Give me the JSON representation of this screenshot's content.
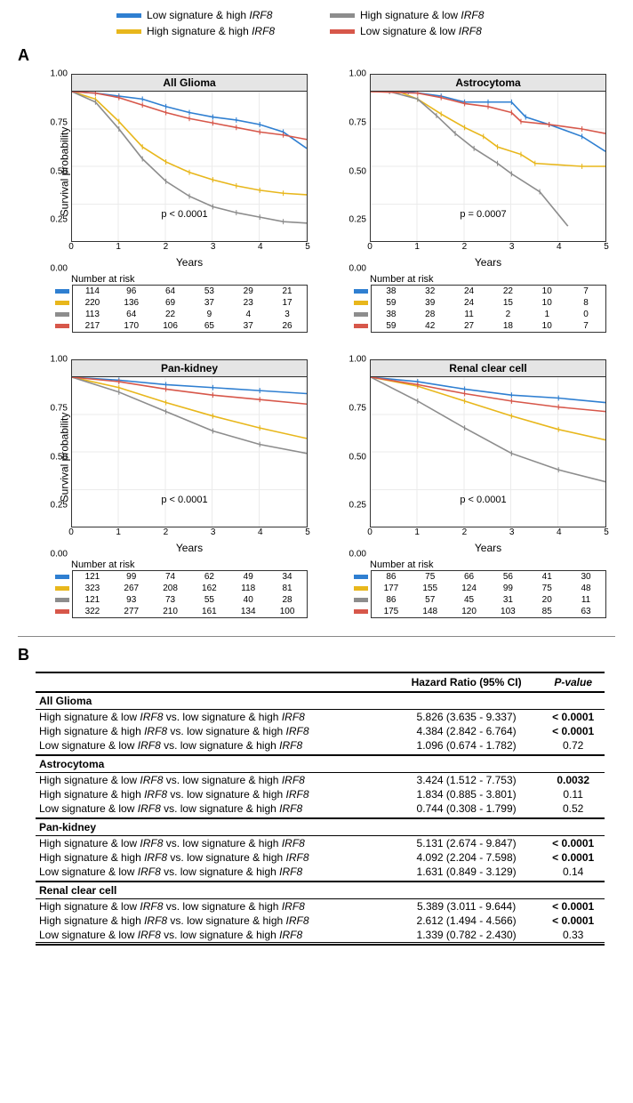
{
  "legend": {
    "items": [
      {
        "color": "#2f7fd1",
        "label_a": "Low signature & high ",
        "label_b": "IRF8"
      },
      {
        "color": "#8d8d8d",
        "label_a": "High signature & low ",
        "label_b": "IRF8"
      },
      {
        "color": "#e8b71c",
        "label_a": "High signature & high ",
        "label_b": "IRF8"
      },
      {
        "color": "#d7574a",
        "label_a": "Low signature & low ",
        "label_b": "IRF8"
      }
    ]
  },
  "panelA_label": "A",
  "panelB_label": "B",
  "colors": {
    "blue": "#2f7fd1",
    "yellow": "#e8b71c",
    "gray": "#8d8d8d",
    "red": "#d7574a",
    "grid": "#ebebeb",
    "border": "#333333",
    "title_bg": "#e5e5e5"
  },
  "axes": {
    "ylabel": "Survival probability",
    "xlabel": "Years",
    "y_ticks": [
      "0.00",
      "0.25",
      "0.50",
      "0.75",
      "1.00"
    ],
    "x_ticks": [
      "0",
      "1",
      "2",
      "3",
      "4",
      "5"
    ],
    "ylim": [
      0,
      1
    ],
    "xlim": [
      0,
      5
    ],
    "stroke_width": 1.6
  },
  "charts": [
    {
      "title": "All Glioma",
      "pval": "p < 0.0001",
      "risk_title": "Number at risk",
      "series": [
        {
          "color": "blue",
          "x": [
            0,
            0.5,
            1,
            1.5,
            2,
            2.5,
            3,
            3.5,
            4,
            4.5,
            5
          ],
          "y": [
            1.0,
            0.99,
            0.97,
            0.95,
            0.9,
            0.86,
            0.83,
            0.81,
            0.78,
            0.73,
            0.62
          ]
        },
        {
          "color": "yellow",
          "x": [
            0,
            0.5,
            1,
            1.5,
            2,
            2.5,
            3,
            3.5,
            4,
            4.5,
            5
          ],
          "y": [
            1.0,
            0.95,
            0.8,
            0.63,
            0.53,
            0.46,
            0.41,
            0.37,
            0.34,
            0.32,
            0.31
          ]
        },
        {
          "color": "gray",
          "x": [
            0,
            0.5,
            1,
            1.5,
            2,
            2.5,
            3,
            3.5,
            4,
            4.5,
            5
          ],
          "y": [
            1.0,
            0.93,
            0.75,
            0.55,
            0.4,
            0.3,
            0.23,
            0.19,
            0.16,
            0.13,
            0.12
          ]
        },
        {
          "color": "red",
          "x": [
            0,
            0.5,
            1,
            1.5,
            2,
            2.5,
            3,
            3.5,
            4,
            4.5,
            5
          ],
          "y": [
            1.0,
            0.99,
            0.96,
            0.91,
            0.86,
            0.82,
            0.79,
            0.76,
            0.73,
            0.71,
            0.68
          ]
        }
      ],
      "risk": [
        {
          "color": "blue",
          "vals": [
            114,
            96,
            64,
            53,
            29,
            21
          ]
        },
        {
          "color": "yellow",
          "vals": [
            220,
            136,
            69,
            37,
            23,
            17
          ]
        },
        {
          "color": "gray",
          "vals": [
            113,
            64,
            22,
            9,
            4,
            3
          ]
        },
        {
          "color": "red",
          "vals": [
            217,
            170,
            106,
            65,
            37,
            26
          ]
        }
      ]
    },
    {
      "title": "Astrocytoma",
      "pval": "p = 0.0007",
      "risk_title": "Number at risk",
      "series": [
        {
          "color": "blue",
          "x": [
            0,
            0.8,
            1.5,
            2,
            2.5,
            3,
            3.3,
            3.8,
            4.5,
            5
          ],
          "y": [
            1.0,
            1.0,
            0.97,
            0.93,
            0.93,
            0.93,
            0.83,
            0.78,
            0.7,
            0.6
          ]
        },
        {
          "color": "yellow",
          "x": [
            0,
            0.6,
            1,
            1.5,
            2,
            2.4,
            2.7,
            3.2,
            3.5,
            4.5,
            5
          ],
          "y": [
            1.0,
            1.0,
            0.95,
            0.85,
            0.76,
            0.7,
            0.63,
            0.58,
            0.52,
            0.5,
            0.5
          ]
        },
        {
          "color": "gray",
          "x": [
            0,
            0.4,
            1,
            1.4,
            1.8,
            2.2,
            2.7,
            3.0,
            3.6,
            4.2
          ],
          "y": [
            1.0,
            1.0,
            0.95,
            0.84,
            0.72,
            0.62,
            0.52,
            0.45,
            0.33,
            0.1
          ]
        },
        {
          "color": "red",
          "x": [
            0,
            1,
            1.5,
            2,
            2.5,
            3,
            3.2,
            3.8,
            4.5,
            5
          ],
          "y": [
            1.0,
            0.99,
            0.96,
            0.92,
            0.9,
            0.86,
            0.8,
            0.78,
            0.75,
            0.72
          ]
        }
      ],
      "risk": [
        {
          "color": "blue",
          "vals": [
            38,
            32,
            24,
            22,
            10,
            7
          ]
        },
        {
          "color": "yellow",
          "vals": [
            59,
            39,
            24,
            15,
            10,
            8
          ]
        },
        {
          "color": "gray",
          "vals": [
            38,
            28,
            11,
            2,
            1,
            0
          ]
        },
        {
          "color": "red",
          "vals": [
            59,
            42,
            27,
            18,
            10,
            7
          ]
        }
      ]
    },
    {
      "title": "Pan-kidney",
      "pval": "p < 0.0001",
      "risk_title": "Number at risk",
      "series": [
        {
          "color": "blue",
          "x": [
            0,
            1,
            2,
            3,
            4,
            5
          ],
          "y": [
            1.0,
            0.98,
            0.95,
            0.93,
            0.91,
            0.89
          ]
        },
        {
          "color": "yellow",
          "x": [
            0,
            1,
            2,
            3,
            4,
            5
          ],
          "y": [
            1.0,
            0.93,
            0.83,
            0.74,
            0.66,
            0.59
          ]
        },
        {
          "color": "gray",
          "x": [
            0,
            1,
            2,
            3,
            4,
            5
          ],
          "y": [
            1.0,
            0.9,
            0.77,
            0.64,
            0.55,
            0.49
          ]
        },
        {
          "color": "red",
          "x": [
            0,
            1,
            2,
            3,
            4,
            5
          ],
          "y": [
            1.0,
            0.97,
            0.92,
            0.88,
            0.85,
            0.82
          ]
        }
      ],
      "risk": [
        {
          "color": "blue",
          "vals": [
            121,
            99,
            74,
            62,
            49,
            34
          ]
        },
        {
          "color": "yellow",
          "vals": [
            323,
            267,
            208,
            162,
            118,
            81
          ]
        },
        {
          "color": "gray",
          "vals": [
            121,
            93,
            73,
            55,
            40,
            28
          ]
        },
        {
          "color": "red",
          "vals": [
            322,
            277,
            210,
            161,
            134,
            100
          ]
        }
      ]
    },
    {
      "title": "Renal clear cell",
      "pval": "p < 0.0001",
      "risk_title": "Number at risk",
      "series": [
        {
          "color": "blue",
          "x": [
            0,
            1,
            2,
            3,
            4,
            5
          ],
          "y": [
            1.0,
            0.97,
            0.92,
            0.88,
            0.86,
            0.83
          ]
        },
        {
          "color": "yellow",
          "x": [
            0,
            1,
            2,
            3,
            4,
            5
          ],
          "y": [
            1.0,
            0.94,
            0.84,
            0.74,
            0.65,
            0.58
          ]
        },
        {
          "color": "gray",
          "x": [
            0,
            1,
            2,
            3,
            4,
            5
          ],
          "y": [
            1.0,
            0.84,
            0.66,
            0.49,
            0.38,
            0.3
          ]
        },
        {
          "color": "red",
          "x": [
            0,
            1,
            2,
            3,
            4,
            5
          ],
          "y": [
            1.0,
            0.95,
            0.89,
            0.84,
            0.8,
            0.77
          ]
        }
      ],
      "risk": [
        {
          "color": "blue",
          "vals": [
            86,
            75,
            66,
            56,
            41,
            30
          ]
        },
        {
          "color": "yellow",
          "vals": [
            177,
            155,
            124,
            99,
            75,
            48
          ]
        },
        {
          "color": "gray",
          "vals": [
            86,
            57,
            45,
            31,
            20,
            11
          ]
        },
        {
          "color": "red",
          "vals": [
            175,
            148,
            120,
            103,
            85,
            63
          ]
        }
      ]
    }
  ],
  "table": {
    "header": {
      "c1": "",
      "c2": "Hazard Ratio (95% CI)",
      "c3_a": "P",
      "c3_b": "-value"
    },
    "cmp_templates": {
      "hsli": [
        "High signature & low ",
        " vs. low signature & high "
      ],
      "hshi": [
        "High signature & high ",
        " vs. low signature & high "
      ],
      "lsli": [
        "Low signature & low ",
        " vs. low signature & high "
      ]
    },
    "gene": "IRF8",
    "groups": [
      {
        "name": "All Glioma",
        "rows": [
          {
            "t": "hsli",
            "hr": "5.826 (3.635 - 9.337)",
            "p": "< 0.0001",
            "bold": true
          },
          {
            "t": "hshi",
            "hr": "4.384 (2.842 - 6.764)",
            "p": "< 0.0001",
            "bold": true
          },
          {
            "t": "lsli",
            "hr": "1.096 (0.674 - 1.782)",
            "p": "0.72",
            "bold": false
          }
        ]
      },
      {
        "name": "Astrocytoma",
        "rows": [
          {
            "t": "hsli",
            "hr": "3.424 (1.512 - 7.753)",
            "p": "0.0032",
            "bold": true
          },
          {
            "t": "hshi",
            "hr": "1.834 (0.885 - 3.801)",
            "p": "0.11",
            "bold": false
          },
          {
            "t": "lsli",
            "hr": "0.744 (0.308 - 1.799)",
            "p": "0.52",
            "bold": false
          }
        ]
      },
      {
        "name": "Pan-kidney",
        "rows": [
          {
            "t": "hsli",
            "hr": "5.131 (2.674 - 9.847)",
            "p": "< 0.0001",
            "bold": true
          },
          {
            "t": "hshi",
            "hr": "4.092 (2.204 - 7.598)",
            "p": "< 0.0001",
            "bold": true
          },
          {
            "t": "lsli",
            "hr": "1.631 (0.849 - 3.129)",
            "p": "0.14",
            "bold": false
          }
        ]
      },
      {
        "name": "Renal clear cell",
        "rows": [
          {
            "t": "hsli",
            "hr": "5.389 (3.011 - 9.644)",
            "p": "< 0.0001",
            "bold": true
          },
          {
            "t": "hshi",
            "hr": "2.612 (1.494 - 4.566)",
            "p": "< 0.0001",
            "bold": true
          },
          {
            "t": "lsli",
            "hr": "1.339 (0.782 - 2.430)",
            "p": "0.33",
            "bold": false
          }
        ]
      }
    ]
  }
}
